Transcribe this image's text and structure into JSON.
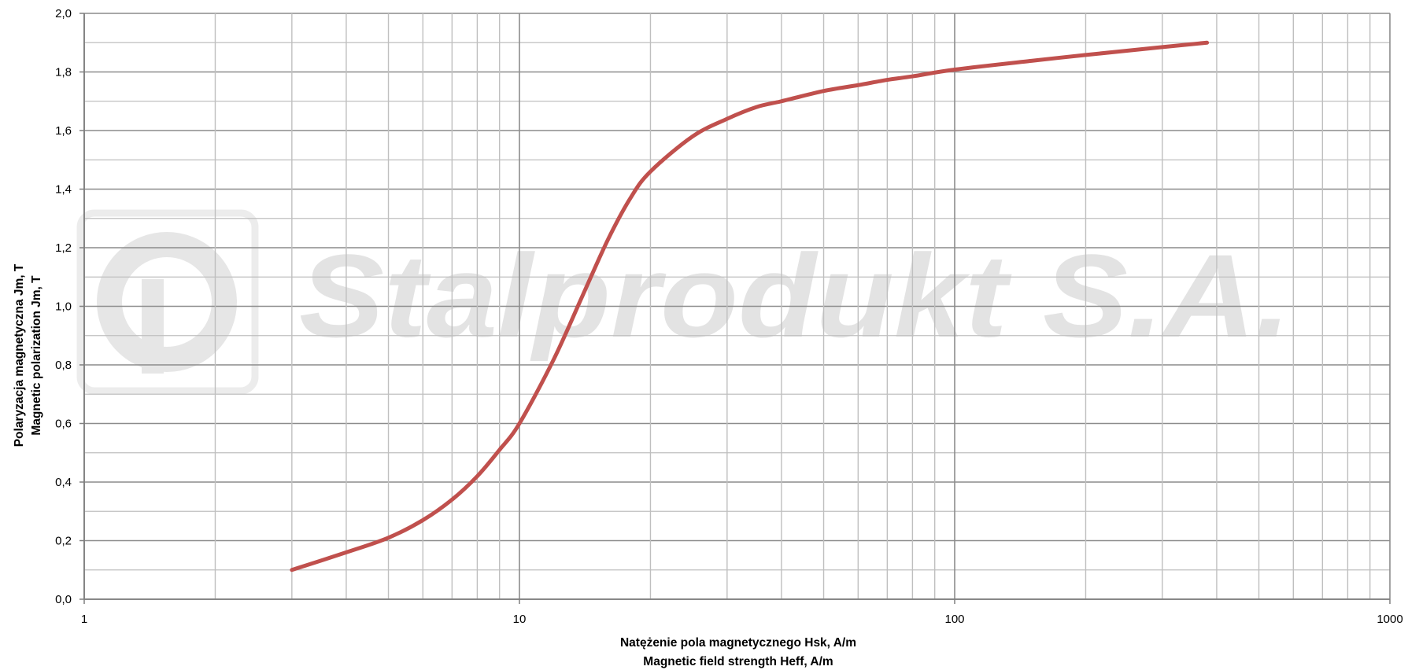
{
  "watermark": {
    "text": "Stalprodukt S.A."
  },
  "chart_data": {
    "type": "line",
    "title": "",
    "xscale": "log",
    "xlim": [
      1,
      1000
    ],
    "ylim": [
      0.0,
      2.0
    ],
    "grid": true,
    "legend": "none",
    "xlabel": [
      "Natężenie pola magnetycznego Hsk, A/m",
      "Magnetic field strength Heff, A/m"
    ],
    "ylabel": [
      "Polaryzacja magnetyczna Jm, T",
      "Magnetic polarization Jm, T"
    ],
    "x_ticks": [
      1,
      10,
      100,
      1000
    ],
    "x_tick_labels": [
      "1",
      "10",
      "100",
      "1000"
    ],
    "y_ticks": [
      0.0,
      0.2,
      0.4,
      0.6,
      0.8,
      1.0,
      1.2,
      1.4,
      1.6,
      1.8,
      2.0
    ],
    "y_tick_labels": [
      "0,0",
      "0,2",
      "0,4",
      "0,6",
      "0,8",
      "1,0",
      "1,2",
      "1,4",
      "1,6",
      "1,8",
      "2,0"
    ],
    "series": [
      {
        "color": "#c0504d",
        "x": [
          3,
          4,
          5,
          6,
          7,
          8,
          9,
          10,
          12,
          14,
          16,
          18,
          20,
          25,
          30,
          35,
          40,
          50,
          60,
          70,
          80,
          100,
          150,
          200,
          300,
          380
        ],
        "y": [
          0.1,
          0.16,
          0.21,
          0.27,
          0.34,
          0.42,
          0.51,
          0.6,
          0.82,
          1.04,
          1.23,
          1.37,
          1.46,
          1.58,
          1.64,
          1.68,
          1.7,
          1.735,
          1.755,
          1.773,
          1.785,
          1.808,
          1.838,
          1.858,
          1.885,
          1.9
        ]
      }
    ]
  }
}
